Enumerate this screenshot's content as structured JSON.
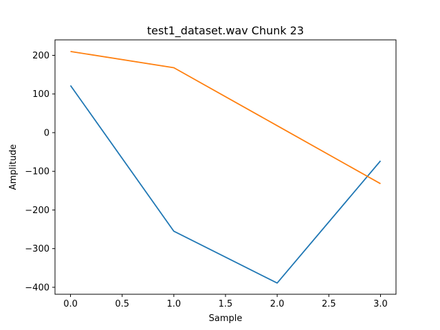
{
  "chart_data": {
    "type": "line",
    "title": "test1_dataset.wav Chunk 23",
    "xlabel": "Sample",
    "ylabel": "Amplitude",
    "x": [
      0,
      1,
      2,
      3
    ],
    "xlim": [
      -0.15,
      3.15
    ],
    "ylim": [
      -418,
      240
    ],
    "xticks": [
      0.0,
      0.5,
      1.0,
      1.5,
      2.0,
      2.5,
      3.0
    ],
    "xtick_labels": [
      "0.0",
      "0.5",
      "1.0",
      "1.5",
      "2.0",
      "2.5",
      "3.0"
    ],
    "yticks": [
      -400,
      -300,
      -200,
      -100,
      0,
      100,
      200
    ],
    "ytick_labels": [
      "−400",
      "−300",
      "−200",
      "−100",
      "0",
      "100",
      "200"
    ],
    "grid": false,
    "series": [
      {
        "values": [
          122,
          -255,
          -389,
          -73
        ],
        "color": "#1f77b4"
      },
      {
        "values": [
          210,
          168,
          18,
          -132
        ],
        "color": "#ff7f0e"
      }
    ]
  }
}
